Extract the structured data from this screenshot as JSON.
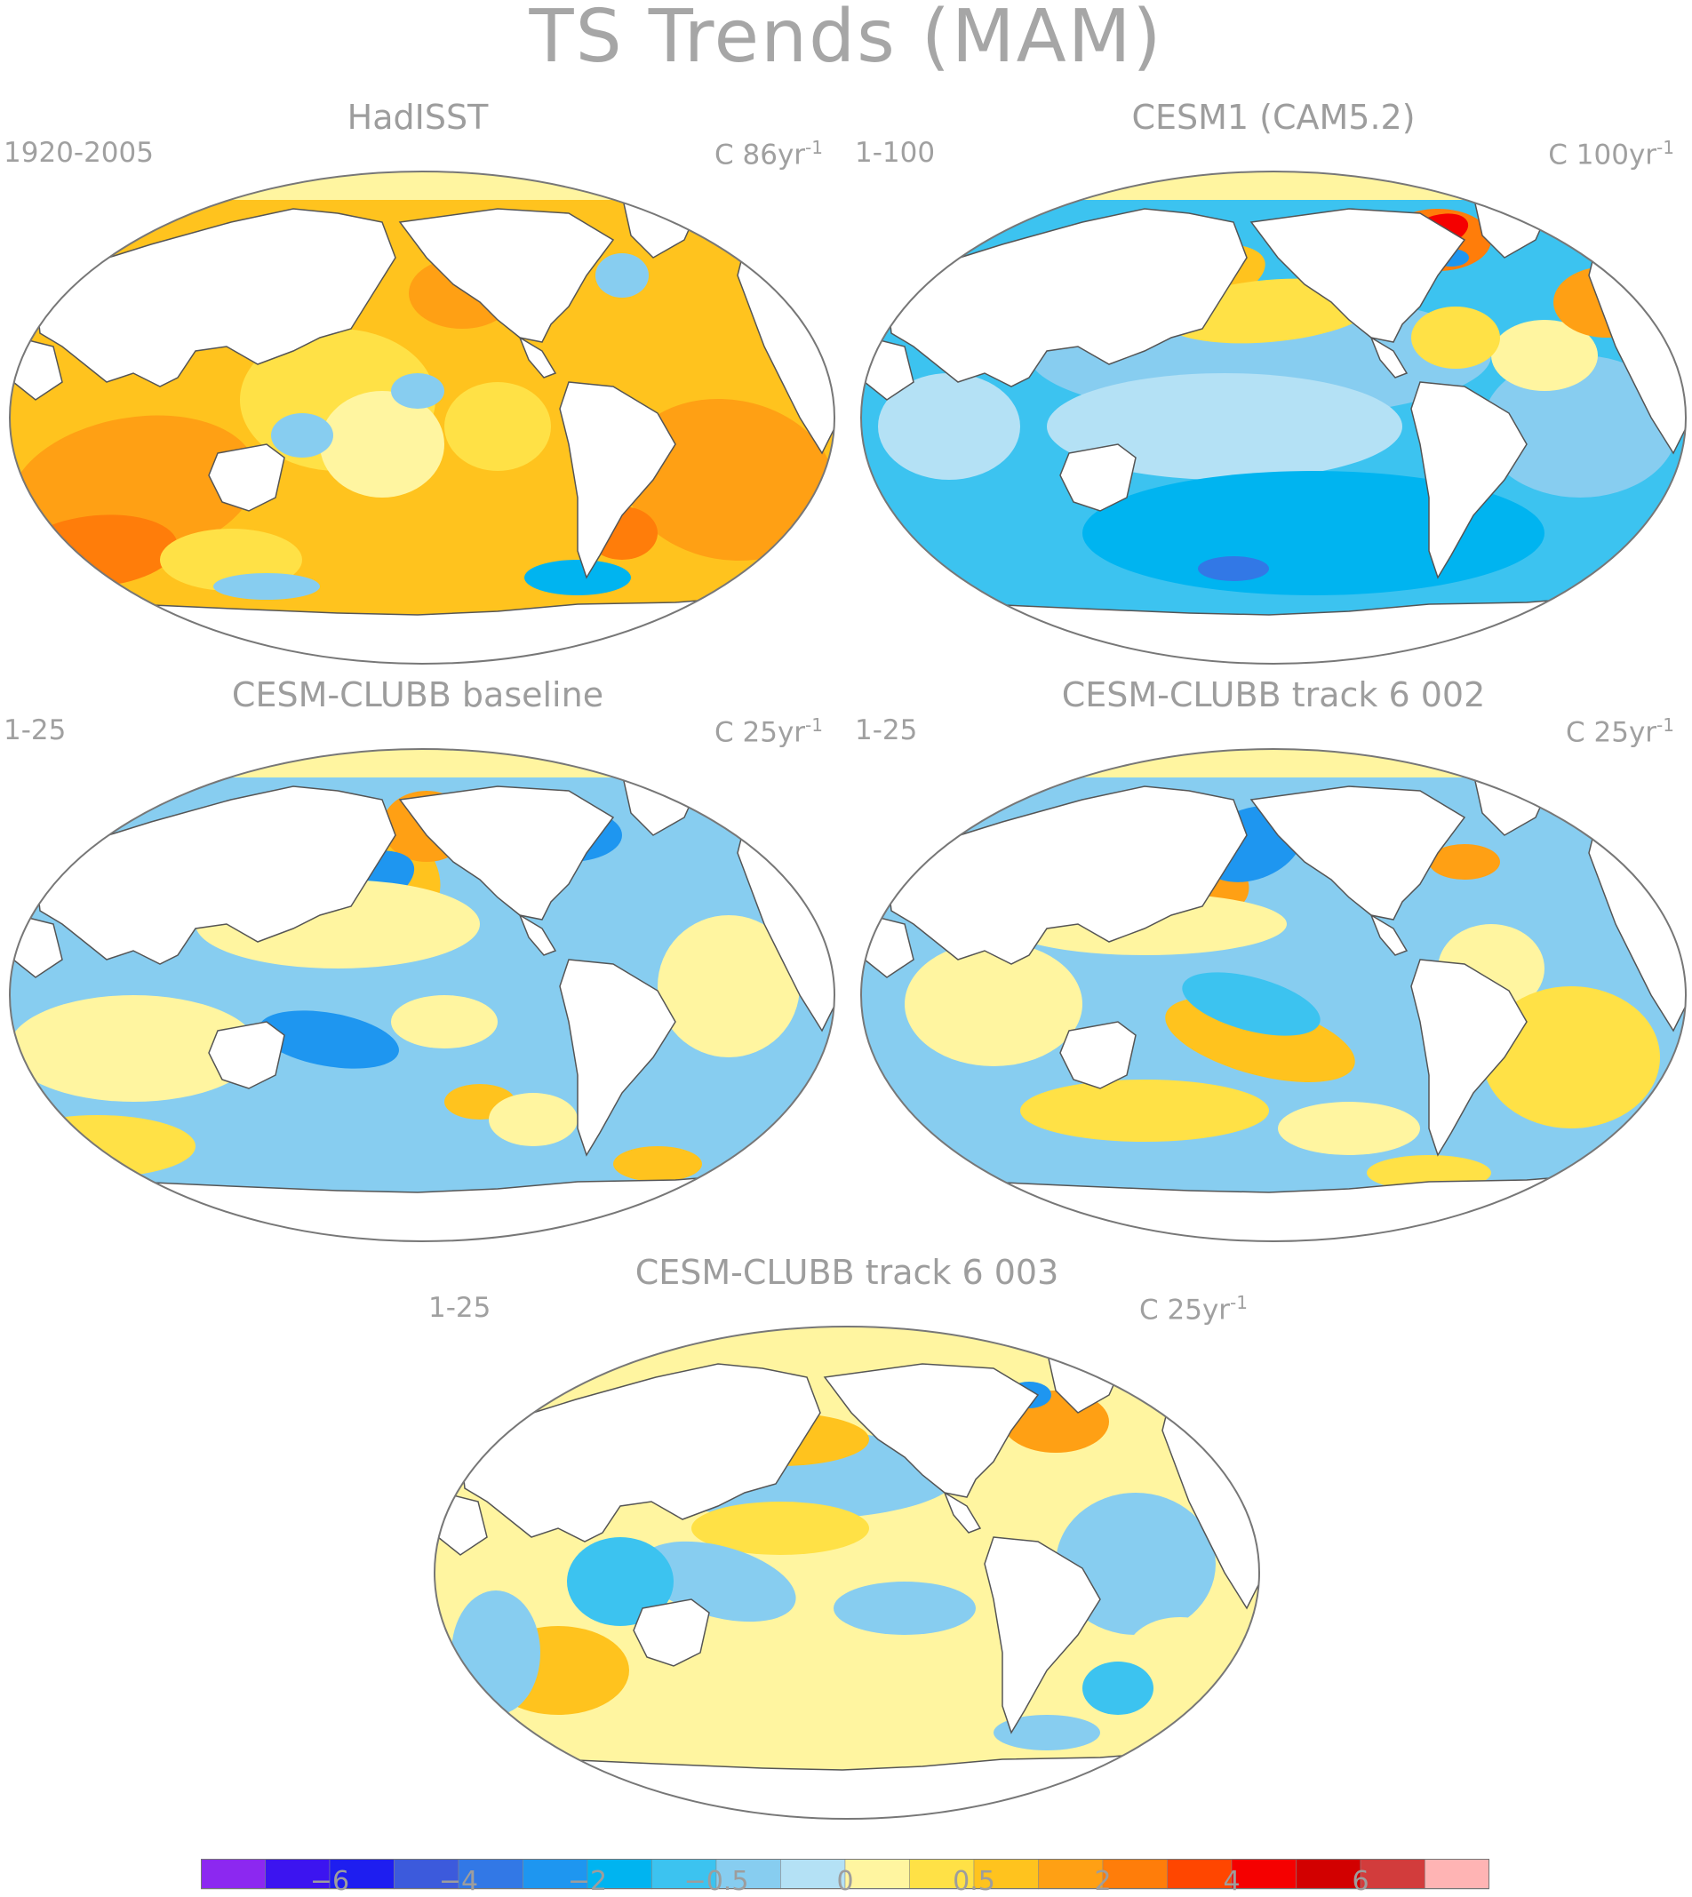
{
  "title": "TS Trends (MAM)",
  "colors": {
    "land": "#ffffff",
    "coast": "#555555",
    "frame": "#777777",
    "sea_ice": "#fff5a0"
  },
  "panels": [
    {
      "id": "hadisst",
      "title": "HadISST",
      "left_label": "1920-2005",
      "right_unit": "C 86yr",
      "right_exp": "-1",
      "pattern": "warm"
    },
    {
      "id": "cesm1",
      "title": "CESM1 (CAM5.2)",
      "left_label": "1-100",
      "right_unit": "C 100yr",
      "right_exp": "-1",
      "pattern": "cool"
    },
    {
      "id": "baseline",
      "title": "CESM-CLUBB baseline",
      "left_label": "1-25",
      "right_unit": "C 25yr",
      "right_exp": "-1",
      "pattern": "mixed1"
    },
    {
      "id": "track6_002",
      "title": "CESM-CLUBB track 6 002",
      "left_label": "1-25",
      "right_unit": "C 25yr",
      "right_exp": "-1",
      "pattern": "mixed2"
    },
    {
      "id": "track6_003",
      "title": "CESM-CLUBB track 6 003",
      "left_label": "1-25",
      "right_unit": "C 25yr",
      "right_exp": "-1",
      "pattern": "mixed3"
    }
  ],
  "colorbar": {
    "colors": [
      "#8c28f0",
      "#3c14f0",
      "#1e1ef0",
      "#3c5adc",
      "#3278e6",
      "#1e96f0",
      "#00b4f0",
      "#3cc3f0",
      "#87cdf0",
      "#b4e1f5",
      "#fff5a0",
      "#ffe146",
      "#ffc31e",
      "#ffa014",
      "#ff7d0a",
      "#ff4600",
      "#f50000",
      "#d20000",
      "#d23c3c",
      "#ffb4b4"
    ],
    "labels": [
      "-6",
      "-4",
      "-2",
      "-0.5",
      "0",
      "0.5",
      "2",
      "4",
      "6"
    ]
  }
}
